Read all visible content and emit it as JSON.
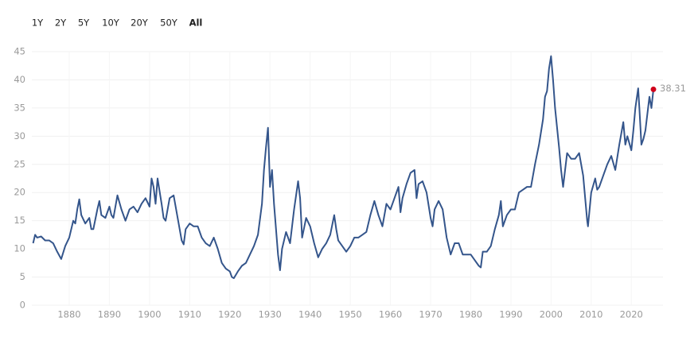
{
  "controls": {
    "range_buttons": [
      "1Y",
      "2Y",
      "5Y",
      "10Y",
      "20Y",
      "50Y",
      "All"
    ],
    "selected": 6
  },
  "chart_data": {
    "type": "line",
    "xlim": [
      1871,
      2025.5
    ],
    "ylim": [
      0,
      45
    ],
    "xticks": [
      1880,
      1890,
      1900,
      1910,
      1920,
      1930,
      1940,
      1950,
      1960,
      1970,
      1980,
      1990,
      2000,
      2010,
      2020
    ],
    "yticks": [
      0,
      5,
      10,
      15,
      20,
      25,
      30,
      35,
      40,
      45
    ],
    "grid": true,
    "highlight_color": "#d0021b",
    "series": [
      {
        "color": "#34558b",
        "x": [
          1871,
          1871.5,
          1872,
          1873,
          1874,
          1875,
          1876,
          1877,
          1878,
          1879,
          1880,
          1881,
          1881.5,
          1882,
          1882.5,
          1883,
          1884,
          1885,
          1885.5,
          1886,
          1887,
          1887.5,
          1888,
          1889,
          1890,
          1890.5,
          1891,
          1892,
          1893,
          1894,
          1895,
          1896,
          1897,
          1898,
          1899,
          1900,
          1900.5,
          1901,
          1901.5,
          1902,
          1903,
          1903.5,
          1904,
          1905,
          1906,
          1907,
          1908,
          1908.5,
          1909,
          1910,
          1911,
          1912,
          1913,
          1914,
          1915,
          1916,
          1917,
          1918,
          1919,
          1920,
          1920.5,
          1921,
          1922,
          1923,
          1924,
          1925,
          1926,
          1927,
          1928,
          1928.5,
          1929,
          1929.5,
          1930,
          1930.5,
          1931,
          1932,
          1932.5,
          1933,
          1934,
          1935,
          1936,
          1937,
          1937.5,
          1938,
          1939,
          1940,
          1941,
          1942,
          1943,
          1944,
          1945,
          1946,
          1946.5,
          1947,
          1948,
          1949,
          1950,
          1951,
          1952,
          1953,
          1954,
          1955,
          1956,
          1957,
          1958,
          1959,
          1960,
          1961,
          1962,
          1962.5,
          1963,
          1964,
          1965,
          1966,
          1966.5,
          1967,
          1968,
          1969,
          1970,
          1970.5,
          1971,
          1972,
          1973,
          1974,
          1975,
          1976,
          1977,
          1978,
          1979,
          1980,
          1981,
          1982,
          1982.5,
          1983,
          1984,
          1985,
          1986,
          1987,
          1987.5,
          1988,
          1989,
          1990,
          1991,
          1992,
          1993,
          1994,
          1995,
          1996,
          1997,
          1998,
          1998.5,
          1999,
          1999.5,
          2000,
          2000.5,
          2001,
          2002,
          2002.5,
          2003,
          2003.5,
          2004,
          2005,
          2006,
          2007,
          2008,
          2009,
          2009.2,
          2010,
          2011,
          2011.5,
          2012,
          2013,
          2014,
          2015,
          2016,
          2017,
          2018,
          2018.5,
          2019,
          2020,
          2020.5,
          2021,
          2021.7,
          2022,
          2022.5,
          2023,
          2023.5,
          2024,
          2024.5,
          2025,
          2025.5
        ],
        "values": [
          11,
          12.5,
          12,
          12.2,
          11.5,
          11.5,
          11,
          9.5,
          8.2,
          10.5,
          12,
          15,
          14.5,
          17,
          18.8,
          16,
          14.5,
          15.5,
          13.5,
          13.5,
          17,
          18.5,
          16,
          15.5,
          17.5,
          16,
          15.5,
          19.5,
          17,
          15,
          17,
          17.5,
          16.5,
          18,
          19,
          17.5,
          22.5,
          21,
          18,
          22.5,
          18,
          15.5,
          15,
          19,
          19.5,
          15.5,
          11.5,
          10.8,
          13.5,
          14.5,
          14,
          14,
          12,
          11,
          10.5,
          12,
          10,
          7.5,
          6.5,
          6,
          5,
          4.8,
          6,
          7,
          7.5,
          9,
          10.5,
          12.5,
          18,
          24,
          28,
          31.5,
          21,
          24,
          18,
          9,
          6.2,
          10,
          13,
          11,
          17,
          22,
          19,
          12,
          15.5,
          14,
          11,
          8.5,
          10,
          11,
          12.5,
          16,
          13.5,
          11.5,
          10.5,
          9.5,
          10.5,
          12,
          12,
          12.5,
          13,
          16,
          18.5,
          16,
          14,
          18,
          17,
          19,
          21,
          16.5,
          19,
          21.5,
          23.5,
          24,
          19,
          21.5,
          22,
          20,
          15.5,
          14,
          17,
          18.5,
          17,
          12,
          9,
          11,
          11,
          9,
          9,
          9,
          8,
          7,
          6.7,
          9.5,
          9.5,
          10.5,
          13.5,
          16,
          18.5,
          14,
          16,
          17,
          17,
          20,
          20.5,
          21,
          21,
          25,
          28.5,
          33,
          37,
          38,
          42,
          44.2,
          40,
          35,
          28,
          24,
          21,
          24,
          27,
          26,
          26,
          27,
          23,
          15,
          14,
          20,
          22.5,
          20.5,
          21,
          23,
          25,
          26.5,
          24,
          28.5,
          32.5,
          28.5,
          30,
          27.5,
          31,
          35,
          38.5,
          35,
          28.5,
          29.5,
          31,
          34,
          37,
          35,
          38.31
        ]
      }
    ]
  }
}
